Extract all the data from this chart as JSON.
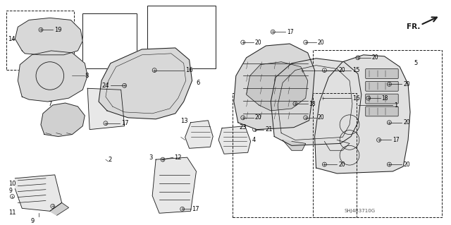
{
  "bg_color": "#ffffff",
  "line_color": "#1a1a1a",
  "text_color": "#000000",
  "fig_width": 6.4,
  "fig_height": 3.19,
  "dpi": 100,
  "diagram_code": "SHJ4B3710G"
}
